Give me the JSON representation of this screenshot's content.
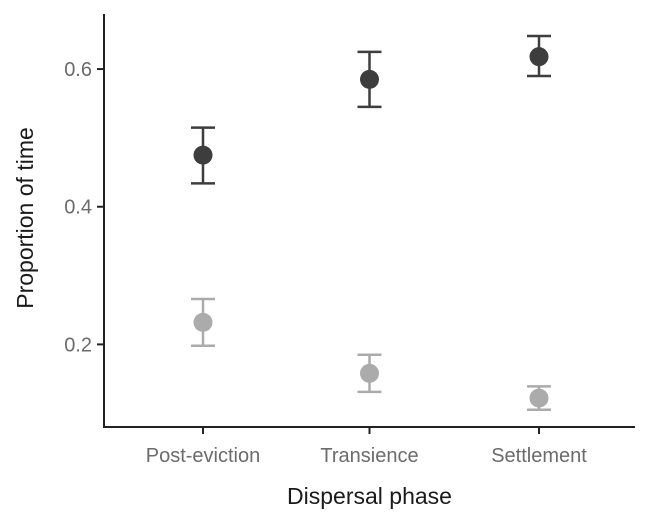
{
  "chart_data": {
    "type": "scatter",
    "xlabel": "Dispersal phase",
    "ylabel": "Proportion of time",
    "categories": [
      "Post-eviction",
      "Transience",
      "Settlement"
    ],
    "ylim": [
      0.08,
      0.68
    ],
    "yticks": [
      0.2,
      0.4,
      0.6
    ],
    "ytick_labels": [
      "0.2",
      "0.4",
      "0.6"
    ],
    "grid": false,
    "legend": "none",
    "series": [
      {
        "color": "#3d3d3d",
        "values": [
          0.475,
          0.585,
          0.618
        ],
        "lower": [
          0.434,
          0.545,
          0.59
        ],
        "upper": [
          0.515,
          0.625,
          0.648
        ]
      },
      {
        "color": "#ababab",
        "values": [
          0.232,
          0.158,
          0.122
        ],
        "lower": [
          0.198,
          0.131,
          0.105
        ],
        "upper": [
          0.266,
          0.185,
          0.139
        ]
      }
    ]
  }
}
